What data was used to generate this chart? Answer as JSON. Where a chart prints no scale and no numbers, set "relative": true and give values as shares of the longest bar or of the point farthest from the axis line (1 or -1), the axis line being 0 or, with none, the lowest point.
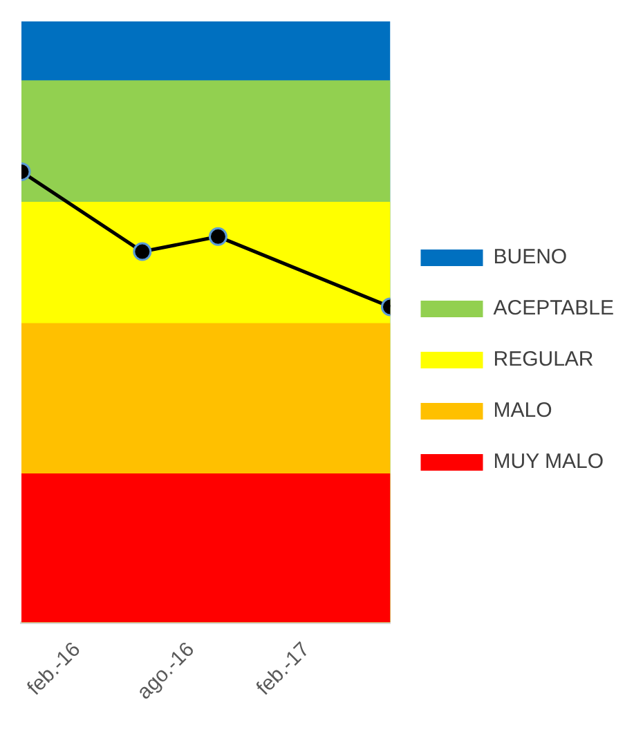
{
  "chart_data": {
    "type": "area",
    "relative": true,
    "grid": false,
    "legend": "right",
    "xlim": [
      "2015-11-04",
      "2017-06-15"
    ],
    "xticks": [
      {
        "value": "2016-02-01",
        "label": "feb.-16"
      },
      {
        "value": "2016-08-01",
        "label": "ago.-16"
      },
      {
        "value": "2017-02-01",
        "label": "feb.-17"
      }
    ],
    "series": [
      {
        "name": "MUY MALO",
        "color": "#ff0000",
        "x": [
          "2015-11-04",
          "2017-06-15"
        ],
        "values": [
          0.248,
          0.248
        ]
      },
      {
        "name": "MALO",
        "color": "#ffc000",
        "x": [
          "2015-11-04",
          "2017-06-15"
        ],
        "values": [
          0.498,
          0.498
        ]
      },
      {
        "name": "REGULAR",
        "color": "#ffff00",
        "x": [
          "2015-11-04",
          "2017-06-15"
        ],
        "values": [
          0.7,
          0.7
        ]
      },
      {
        "name": "ACEPTABLE",
        "color": "#92d050",
        "x": [
          "2015-11-04",
          "2017-06-15"
        ],
        "values": [
          0.902,
          0.902
        ]
      },
      {
        "name": "BUENO",
        "color": "#0070c0",
        "x": [
          "2015-11-04",
          "2017-06-15"
        ],
        "values": [
          1,
          1
        ]
      },
      {
        "type": "line",
        "marker": "circle",
        "color": "#000000",
        "x": [
          "2015-11-04",
          "2016-05-15",
          "2016-09-13",
          "2017-06-15"
        ],
        "values": [
          0.75,
          0.617,
          0.642,
          0.525
        ]
      }
    ]
  }
}
